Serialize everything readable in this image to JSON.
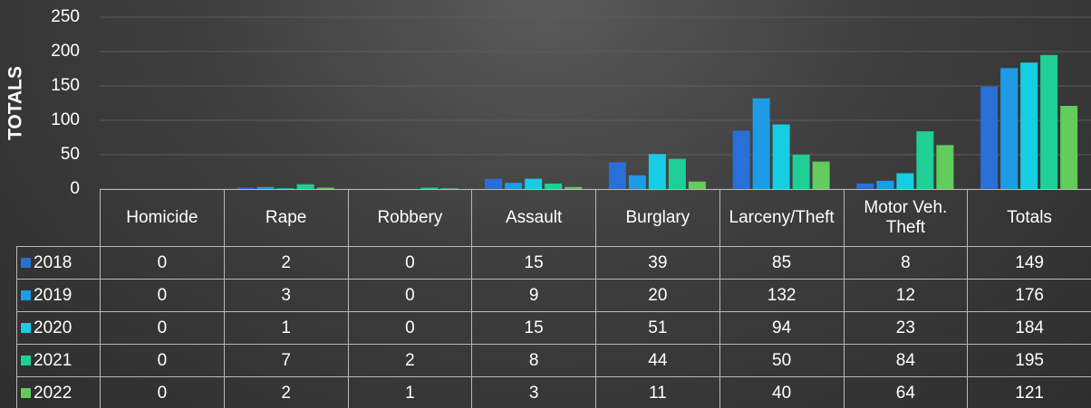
{
  "chart_data": {
    "type": "bar",
    "y_label": "TOTALS",
    "categories": [
      "Homicide",
      "Rape",
      "Robbery",
      "Assault",
      "Burglary",
      "Larceny/Theft",
      "Motor Veh. Theft",
      "Totals"
    ],
    "series": [
      {
        "name": "2018",
        "color": "#2a6fd6",
        "values": [
          0,
          2,
          0,
          15,
          39,
          85,
          8,
          149
        ]
      },
      {
        "name": "2019",
        "color": "#1f9be6",
        "values": [
          0,
          3,
          0,
          9,
          20,
          132,
          12,
          176
        ]
      },
      {
        "name": "2020",
        "color": "#17cde3",
        "values": [
          0,
          1,
          0,
          15,
          51,
          94,
          23,
          184
        ]
      },
      {
        "name": "2021",
        "color": "#1fcf95",
        "values": [
          0,
          7,
          2,
          8,
          44,
          50,
          84,
          195
        ]
      },
      {
        "name": "2022",
        "color": "#62cc5c",
        "values": [
          0,
          2,
          1,
          3,
          11,
          40,
          64,
          121
        ]
      }
    ],
    "ylim": [
      0,
      250
    ],
    "yticks": [
      0,
      50,
      100,
      150,
      200,
      250
    ],
    "grid": true
  }
}
